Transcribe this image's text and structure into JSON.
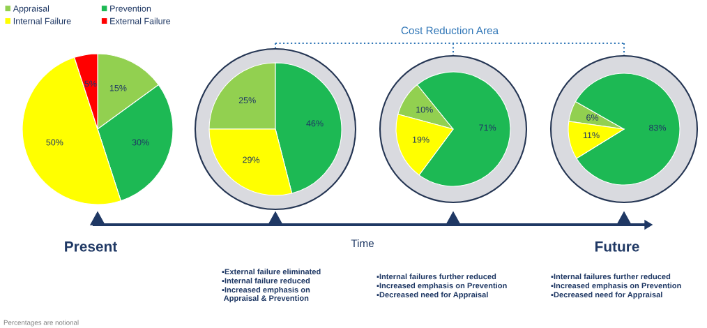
{
  "chart_data": [
    {
      "type": "pie",
      "categories": [
        "Appraisal",
        "Prevention",
        "Internal Failure",
        "External Failure"
      ],
      "values": [
        15,
        30,
        50,
        5
      ],
      "value_labels": [
        "15%",
        "30%",
        "50%",
        "5%"
      ],
      "colors": [
        "#92d050",
        "#1db954",
        "#ffff00",
        "#ff0000"
      ],
      "legend": "top"
    },
    {
      "type": "pie",
      "categories": [
        null,
        null,
        null
      ],
      "values": [
        25,
        46,
        29
      ],
      "value_labels": [
        "25%",
        "46%",
        "29%"
      ],
      "colors": [
        "#92d050",
        "#1db954",
        "#ffff00"
      ],
      "annotations": [
        "▪External failure eliminated",
        "▪Internal failure reduced",
        "▪Increased emphasis on\n Appraisal & Prevention"
      ]
    },
    {
      "type": "pie",
      "categories": [
        null,
        null,
        null
      ],
      "values": [
        10,
        71,
        19
      ],
      "value_labels": [
        "10%",
        "71%",
        "19%"
      ],
      "colors": [
        "#92d050",
        "#1db954",
        "#ffff00"
      ],
      "annotations": [
        "▪Internal failures further reduced",
        "▪Increased emphasis on Prevention",
        "▪Decreased need for Appraisal"
      ]
    },
    {
      "type": "pie",
      "categories": [
        null,
        null,
        null
      ],
      "values": [
        6,
        83,
        11
      ],
      "value_labels": [
        "6%",
        "83%",
        "11%"
      ],
      "colors": [
        "#92d050",
        "#1db954",
        "#ffff00"
      ],
      "annotations": [
        "▪Internal failures further reduced",
        "▪Increased emphasis on Prevention",
        "▪Decreased need for Appraisal"
      ]
    },
    {
      "type": "other",
      "annotations": [
        "Present",
        "Time",
        "Future",
        "Cost Reduction Area",
        "Percentages are notional"
      ]
    }
  ]
}
